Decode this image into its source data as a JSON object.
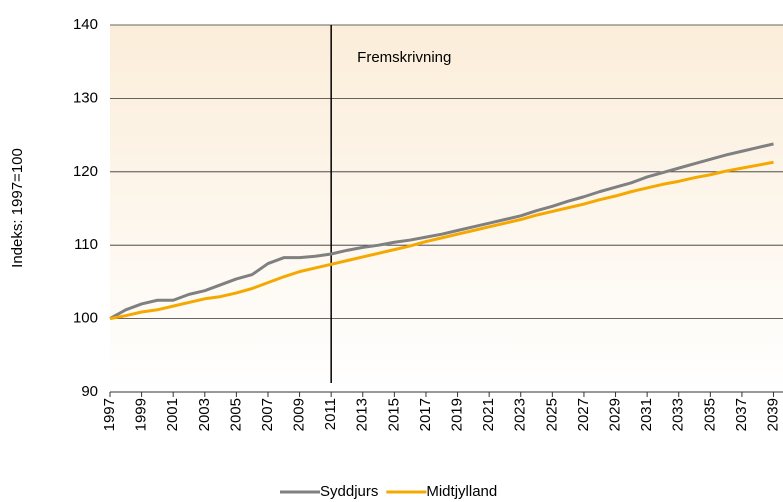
{
  "chart_data": {
    "type": "line",
    "y_label": "Indeks: 1997=100",
    "x": [
      1997,
      1998,
      1999,
      2000,
      2001,
      2002,
      2003,
      2004,
      2005,
      2006,
      2007,
      2008,
      2009,
      2010,
      2011,
      2012,
      2013,
      2014,
      2015,
      2016,
      2017,
      2018,
      2019,
      2020,
      2021,
      2022,
      2023,
      2024,
      2025,
      2026,
      2027,
      2028,
      2029,
      2030,
      2031,
      2032,
      2033,
      2034,
      2035,
      2036,
      2037,
      2038,
      2039
    ],
    "series": [
      {
        "name": "Syddjurs",
        "color": "#808080",
        "values": [
          100,
          101.2,
          102,
          102.5,
          102.5,
          103.3,
          103.8,
          104.6,
          105.4,
          106,
          107.5,
          108.3,
          108.3,
          108.5,
          108.8,
          109.3,
          109.7,
          110,
          110.4,
          110.7,
          111.1,
          111.5,
          112,
          112.5,
          113,
          113.5,
          114,
          114.7,
          115.3,
          116,
          116.6,
          117.3,
          117.9,
          118.5,
          119.3,
          119.9,
          120.5,
          121.1,
          121.7,
          122.3,
          122.8,
          123.3,
          123.8
        ]
      },
      {
        "name": "Midtjylland",
        "color": "#f5a800",
        "values": [
          100,
          100.4,
          100.9,
          101.2,
          101.7,
          102.2,
          102.7,
          103,
          103.5,
          104.1,
          104.9,
          105.7,
          106.4,
          106.9,
          107.4,
          107.9,
          108.4,
          108.9,
          109.4,
          109.9,
          110.5,
          111,
          111.5,
          112,
          112.5,
          113,
          113.5,
          114.1,
          114.6,
          115.1,
          115.6,
          116.2,
          116.7,
          117.3,
          117.8,
          118.3,
          118.7,
          119.2,
          119.6,
          120.1,
          120.5,
          120.9,
          121.3
        ]
      }
    ],
    "annotation": {
      "text": "Fremskrivning",
      "x": 2011
    },
    "xlim": [
      1997,
      2039.6
    ],
    "xticks": [
      1997,
      1999,
      2001,
      2003,
      2005,
      2007,
      2009,
      2011,
      2013,
      2015,
      2017,
      2019,
      2021,
      2023,
      2025,
      2027,
      2029,
      2031,
      2033,
      2035,
      2037,
      2039
    ],
    "ylim": [
      90,
      140
    ],
    "yticks": [
      90,
      100,
      110,
      120,
      130,
      140
    ],
    "grid": true,
    "legend": "bottom"
  }
}
